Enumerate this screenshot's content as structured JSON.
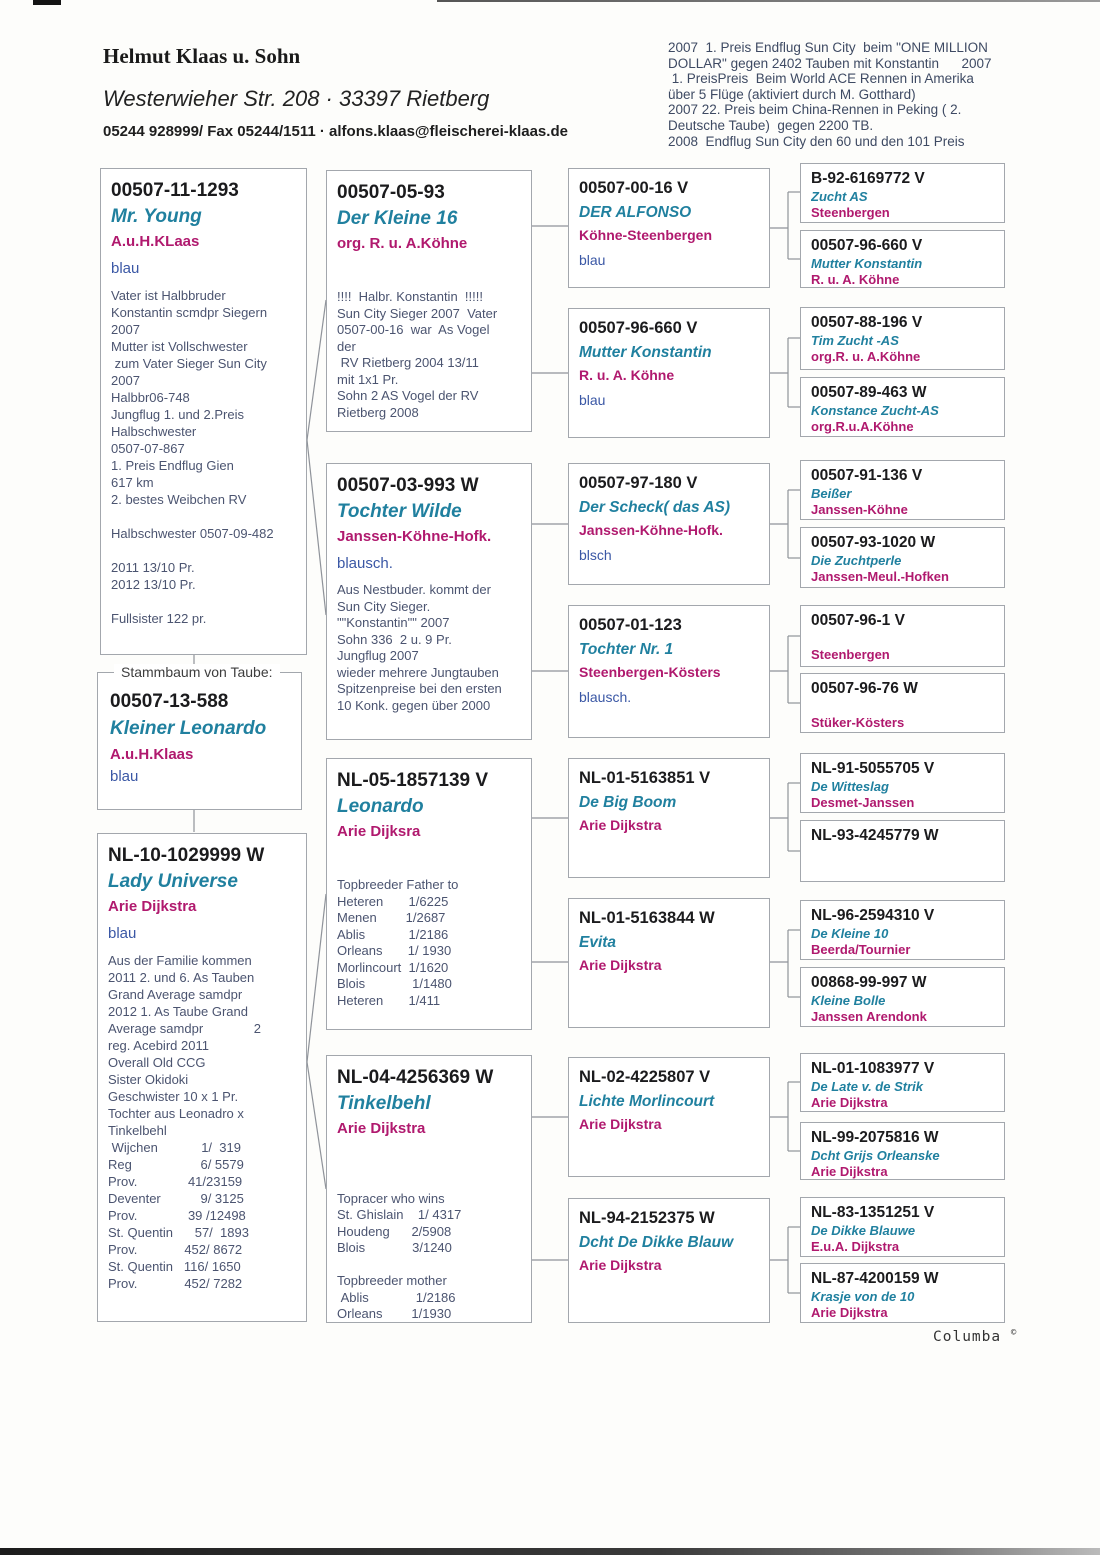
{
  "header": {
    "owner": "Helmut Klaas u. Sohn",
    "address": "Westerwieher Str. 208  ·  33397 Rietberg",
    "contact": "05244 928999/ Fax 05244/1511  ·  alfons.klaas@fleischerei-klaas.de",
    "achievements": [
      "2007  1. Preis Endflug Sun City  beim \"ONE MILLION",
      "DOLLAR\" gegen 2402 Tauben mit Konstantin      2007",
      " 1. PreisPreis  Beim World ACE Rennen in Amerika",
      "über 5 Flüge (aktiviert durch M. Gotthard)",
      "2007 22. Preis beim China-Rennen in Peking ( 2.",
      "Deutsche Taube)  gegen 2200 TB.",
      "2008  Endflug Sun City den 60 und den 101 Preis"
    ]
  },
  "subject_label": "Stammbaum von Taube:",
  "footer": {
    "brand": "Columba",
    "copyright": "©"
  },
  "colors": {
    "ring_text": "#1b1b1d",
    "name_teal": "#20809f",
    "breeder_magenta": "#b0196e",
    "color_note_blue": "#3a57a5",
    "body_text": "#4b5470"
  },
  "pedigree": {
    "subject": {
      "ring": "00507-13-588",
      "name": "Kleiner Leonardo",
      "breeder": "A.u.H.Klaas",
      "color": "blau"
    },
    "gen1": [
      {
        "ring": "00507-11-1293",
        "name": "Mr. Young",
        "breeder": "A.u.H.KLaas",
        "color": "blau",
        "body": [
          "Vater ist Halbbruder",
          "Konstantin scmdpr Siegern",
          "2007",
          "Mutter ist Vollschwester",
          " zum Vater Sieger Sun City",
          "2007",
          "Halbbr06-748",
          "Jungflug 1. und 2.Preis",
          "Halbschwester",
          "0507-07-867",
          "1. Preis Endflug Gien",
          "617 km",
          "2. bestes Weibchen RV",
          "",
          "Halbschwester 0507-09-482",
          "",
          "2011 13/10 Pr.",
          "2012 13/10 Pr.",
          "",
          "Fullsister 122 pr."
        ]
      },
      {
        "ring": "NL-10-1029999 W",
        "name": "Lady Universe",
        "breeder": "Arie Dijkstra",
        "color": "blau",
        "body": [
          "Aus der Familie kommen",
          "2011 2. und 6. As Tauben",
          "Grand Average samdpr",
          "2012 1. As Taube Grand",
          "Average samdpr              2",
          "reg. Acebird 2011",
          "Overall Old CCG",
          "Sister Okidoki",
          "Geschwister 10 x 1 Pr.",
          "Tochter aus Leonadro x",
          "Tinkelbehl",
          " Wijchen            1/  319",
          "Reg                   6/ 5579",
          "Prov.              41/23159",
          "Deventer           9/ 3125",
          "Prov.              39 /12498",
          "St. Quentin      57/  1893",
          "Prov.             452/ 8672",
          "St. Quentin   116/ 1650",
          "Prov.             452/ 7282"
        ]
      }
    ],
    "gen2": [
      {
        "ring": "00507-05-93",
        "name": "Der Kleine 16",
        "breeder": "org. R. u. A.Köhne",
        "color": "",
        "body": [
          "!!!!  Halbr. Konstantin  !!!!!",
          "Sun City Sieger 2007  Vater",
          "0507-00-16  war  As Vogel",
          "der",
          " RV Rietberg 2004 13/11",
          "mit 1x1 Pr.",
          "Sohn 2 AS Vogel der RV",
          "Rietberg 2008"
        ]
      },
      {
        "ring": "00507-03-993 W",
        "name": "Tochter Wilde",
        "breeder": "Janssen-Köhne-Hofk.",
        "color": "blausch.",
        "body": [
          "Aus Nestbuder. kommt der",
          "Sun City Sieger.",
          "\"\"Konstantin\"\" 2007",
          "Sohn 336  2 u. 9 Pr.",
          "Jungflug 2007",
          "wieder mehrere Jungtauben",
          "Spitzenpreise bei den ersten",
          "10 Konk. gegen über 2000"
        ]
      },
      {
        "ring": "NL-05-1857139 V",
        "name": "Leonardo",
        "breeder": "Arie Dijksra",
        "color": "",
        "body": [
          "Topbreeder Father to",
          "Heteren       1/6225",
          "Menen        1/2687",
          "Ablis            1/2186",
          "Orleans       1/ 1930",
          "Morlincourt  1/1620",
          "Blois             1/1480",
          "Heteren       1/411"
        ]
      },
      {
        "ring": "NL-04-4256369 W",
        "name": "Tinkelbehl",
        "breeder": "Arie Dijkstra",
        "color": "",
        "body": [
          "",
          "Topracer who wins",
          "St. Ghislain    1/ 4317",
          "Houdeng      2/5908",
          "Blois             3/1240",
          "",
          "Topbreeder mother",
          " Ablis             1/2186",
          "Orleans        1/1930"
        ]
      }
    ],
    "gen3": [
      {
        "ring": "00507-00-16 V",
        "name": "DER ALFONSO",
        "breeder": "Köhne-Steenbergen",
        "color": "blau"
      },
      {
        "ring": "00507-96-660 V",
        "name": " Mutter Konstantin",
        "breeder": "R. u. A. Köhne",
        "color": "blau"
      },
      {
        "ring": "00507-97-180 V",
        "name": "Der Scheck( das AS)",
        "breeder": "Janssen-Köhne-Hofk.",
        "color": "blsch"
      },
      {
        "ring": "00507-01-123",
        "name": "Tochter  Nr. 1",
        "breeder": "Steenbergen-Kösters",
        "color": "blausch."
      },
      {
        "ring": "NL-01-5163851 V",
        "name": "De Big Boom",
        "breeder": "Arie Dijkstra",
        "color": ""
      },
      {
        "ring": "NL-01-5163844 W",
        "name": "Evita",
        "breeder": "Arie Dijkstra",
        "color": ""
      },
      {
        "ring": "NL-02-4225807 V",
        "name": "Lichte Morlincourt",
        "breeder": "Arie Dijkstra",
        "color": ""
      },
      {
        "ring": "NL-94-2152375 W",
        "name": "Dcht De Dikke Blauw",
        "breeder": "Arie Dijkstra",
        "color": ""
      }
    ],
    "gen4": [
      {
        "ring": "B-92-6169772 V",
        "name": " Zucht AS",
        "breeder": "Steenbergen"
      },
      {
        "ring": "00507-96-660 V",
        "name": " Mutter Konstantin",
        "breeder": "R. u. A. Köhne"
      },
      {
        "ring": "00507-88-196 V",
        "name": "Tim Zucht -AS",
        "breeder": "org.R. u. A.Köhne"
      },
      {
        "ring": "00507-89-463 W",
        "name": "Konstance Zucht-AS",
        "breeder": "org.R.u.A.Köhne"
      },
      {
        "ring": "00507-91-136 V",
        "name": "Beißer",
        "breeder": "Janssen-Köhne"
      },
      {
        "ring": "00507-93-1020 W",
        "name": "Die Zuchtperle",
        "breeder": "Janssen-Meul.-Hofken"
      },
      {
        "ring": "00507-96-1 V",
        "name": "",
        "breeder": "Steenbergen"
      },
      {
        "ring": "00507-96-76 W",
        "name": "",
        "breeder": "Stüker-Kösters"
      },
      {
        "ring": "NL-91-5055705 V",
        "name": "De Witteslag",
        "breeder": "Desmet-Janssen"
      },
      {
        "ring": "NL-93-4245779 W",
        "name": "",
        "breeder": ""
      },
      {
        "ring": "NL-96-2594310 V",
        "name": "De Kleine 10",
        "breeder": "Beerda/Tournier"
      },
      {
        "ring": "00868-99-997 W",
        "name": "Kleine Bolle",
        "breeder": "Janssen Arendonk"
      },
      {
        "ring": "NL-01-1083977 V",
        "name": "De Late v. de Strik",
        "breeder": "Arie Dijkstra"
      },
      {
        "ring": "NL-99-2075816 W",
        "name": "Dcht Grijs Orleanske",
        "breeder": "Arie Dijkstra"
      },
      {
        "ring": "NL-83-1351251 V",
        "name": "De Dikke Blauwe",
        "breeder": "E.u.A. Dijkstra"
      },
      {
        "ring": "NL-87-4200159 W",
        "name": "Krasje von de 10",
        "breeder": "Arie Dijkstra"
      }
    ]
  }
}
